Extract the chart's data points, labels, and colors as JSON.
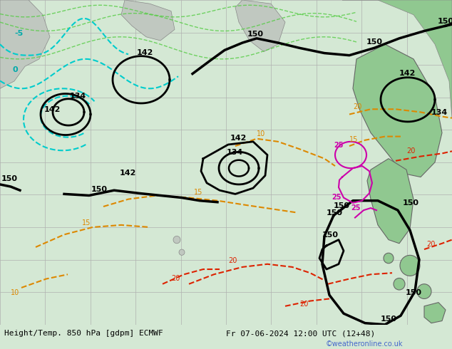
{
  "title_bottom": "Height/Temp. 850 hPa [gdpm] ECMWF",
  "date_str": "Fr 07-06-2024 12:00 UTC (12+48)",
  "credit": "©weatheronline.co.uk",
  "bg_color": "#d4e8d4",
  "grid_color": "#b0b0b0",
  "land_color": "#c0c8c0",
  "sea_color": "#d4e8d4",
  "warm_green": "#90c890",
  "title_fontsize": 8,
  "credit_fontsize": 7,
  "credit_color": "#4466cc"
}
